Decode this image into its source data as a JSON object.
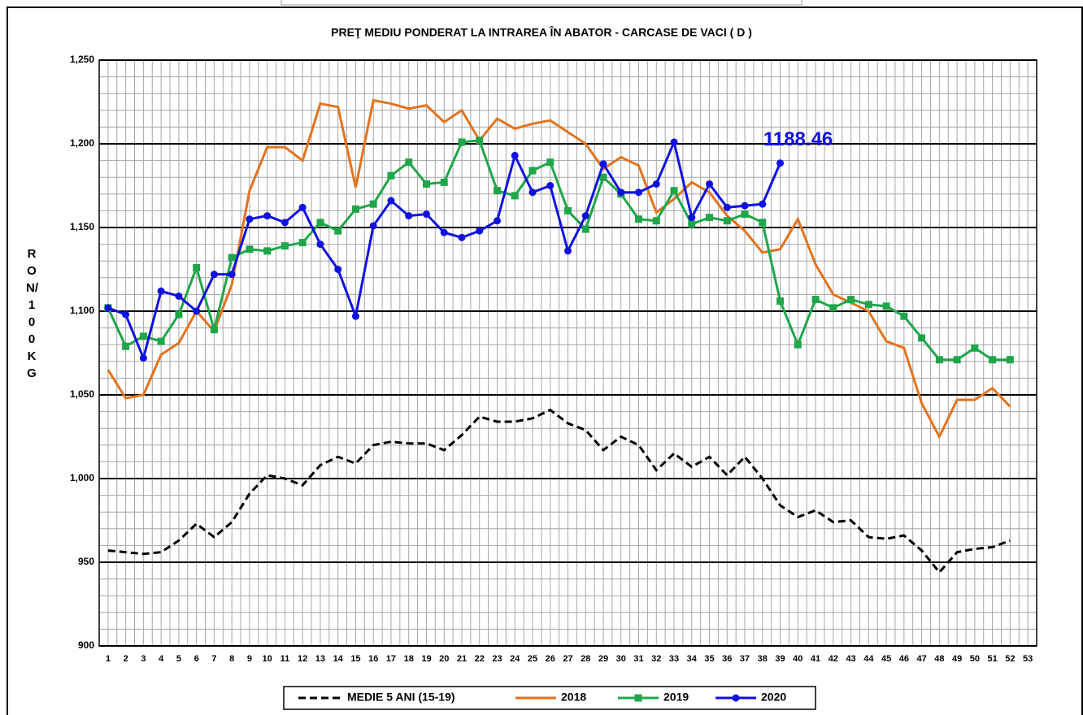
{
  "chart_data": {
    "type": "line",
    "title": "PREŢ MEDIU PONDERAT LA INTRAREA ÎN ABATOR - CARCASE DE VACI ( D )",
    "y_label": "RON/ 100 KG",
    "categories": [
      "1",
      "2",
      "3",
      "4",
      "5",
      "6",
      "7",
      "8",
      "9",
      "10",
      "11",
      "12",
      "13",
      "14",
      "15",
      "16",
      "17",
      "18",
      "19",
      "20",
      "21",
      "22",
      "23",
      "24",
      "25",
      "26",
      "27",
      "28",
      "29",
      "30",
      "31",
      "32",
      "33",
      "34",
      "35",
      "36",
      "37",
      "38",
      "39",
      "40",
      "41",
      "42",
      "43",
      "44",
      "45",
      "46",
      "47",
      "48",
      "49",
      "50",
      "51",
      "52",
      "53"
    ],
    "ylim": [
      900,
      1250
    ],
    "yticks": [
      900,
      950,
      {
        "value": 1000,
        "label": "1,000"
      },
      {
        "value": 1050,
        "label": "1,050"
      },
      {
        "value": 1100,
        "label": "1,100"
      },
      {
        "value": 1150,
        "label": "1,150"
      },
      {
        "value": 1200,
        "label": "1,200"
      },
      {
        "value": 1250,
        "label": "1,250"
      }
    ],
    "grid": true,
    "series": [
      {
        "name": "MEDIE 5 ANI (15-19)",
        "color": "#000000",
        "dashed": true,
        "marker": "none",
        "values": [
          957,
          956,
          955,
          956,
          963,
          973,
          965,
          974,
          991,
          1002,
          1000,
          996,
          1008,
          1013,
          1009,
          1020,
          1022,
          1021,
          1021,
          1017,
          1026,
          1037,
          1034,
          1034,
          1036,
          1041,
          1033,
          1029,
          1017,
          1025,
          1020,
          1005,
          1015,
          1007,
          1013,
          1002,
          1013,
          1000,
          984,
          977,
          981,
          974,
          975,
          965,
          964,
          966,
          957,
          944,
          956,
          958,
          959,
          963,
          null
        ]
      },
      {
        "name": "2018",
        "color": "#e3731e",
        "marker": "none",
        "values": [
          1065,
          1048,
          1050,
          1074,
          1081,
          1100,
          1088,
          1116,
          1172,
          1198,
          1198,
          1190,
          1224,
          1222,
          1174,
          1226,
          1224,
          1221,
          1223,
          1213,
          1220,
          1202,
          1215,
          1209,
          1212,
          1214,
          1207,
          1200,
          1185,
          1192,
          1187,
          1159,
          1167,
          1177,
          1171,
          1157,
          1148,
          1135,
          1137,
          1155,
          1128,
          1110,
          1105,
          1100,
          1082,
          1078,
          1045,
          1025,
          1047,
          1047,
          1054,
          1043,
          null
        ]
      },
      {
        "name": "2019",
        "color": "#1fa64a",
        "marker": "square",
        "values": [
          1102,
          1079,
          1085,
          1082,
          1098,
          1126,
          1089,
          1132,
          1137,
          1136,
          1139,
          1141,
          1153,
          1148,
          1161,
          1164,
          1181,
          1189,
          1176,
          1177,
          1201,
          1202,
          1172,
          1169,
          1184,
          1189,
          1160,
          1149,
          1180,
          1170,
          1155,
          1154,
          1172,
          1152,
          1156,
          1154,
          1158,
          1153,
          1106,
          1080,
          1107,
          1102,
          1107,
          1104,
          1103,
          1097,
          1084,
          1071,
          1071,
          1078,
          1071,
          1071,
          null
        ]
      },
      {
        "name": "2020",
        "color": "#1010e0",
        "marker": "circle",
        "values": [
          1102,
          1098,
          1072,
          1112,
          1109,
          1100,
          1122,
          1122,
          1155,
          1157,
          1153,
          1162,
          1140,
          1125,
          1097,
          1151,
          1166,
          1157,
          1158,
          1147,
          1144,
          1148,
          1154,
          1193,
          1171,
          1175,
          1136,
          1157,
          1188,
          1171,
          1171,
          1176,
          1201,
          1156,
          1176,
          1162,
          1163,
          1164,
          1188.46,
          null,
          null,
          null,
          null,
          null,
          null,
          null,
          null,
          null,
          null,
          null,
          null,
          null,
          null
        ]
      }
    ],
    "annotation": "1188.46"
  }
}
